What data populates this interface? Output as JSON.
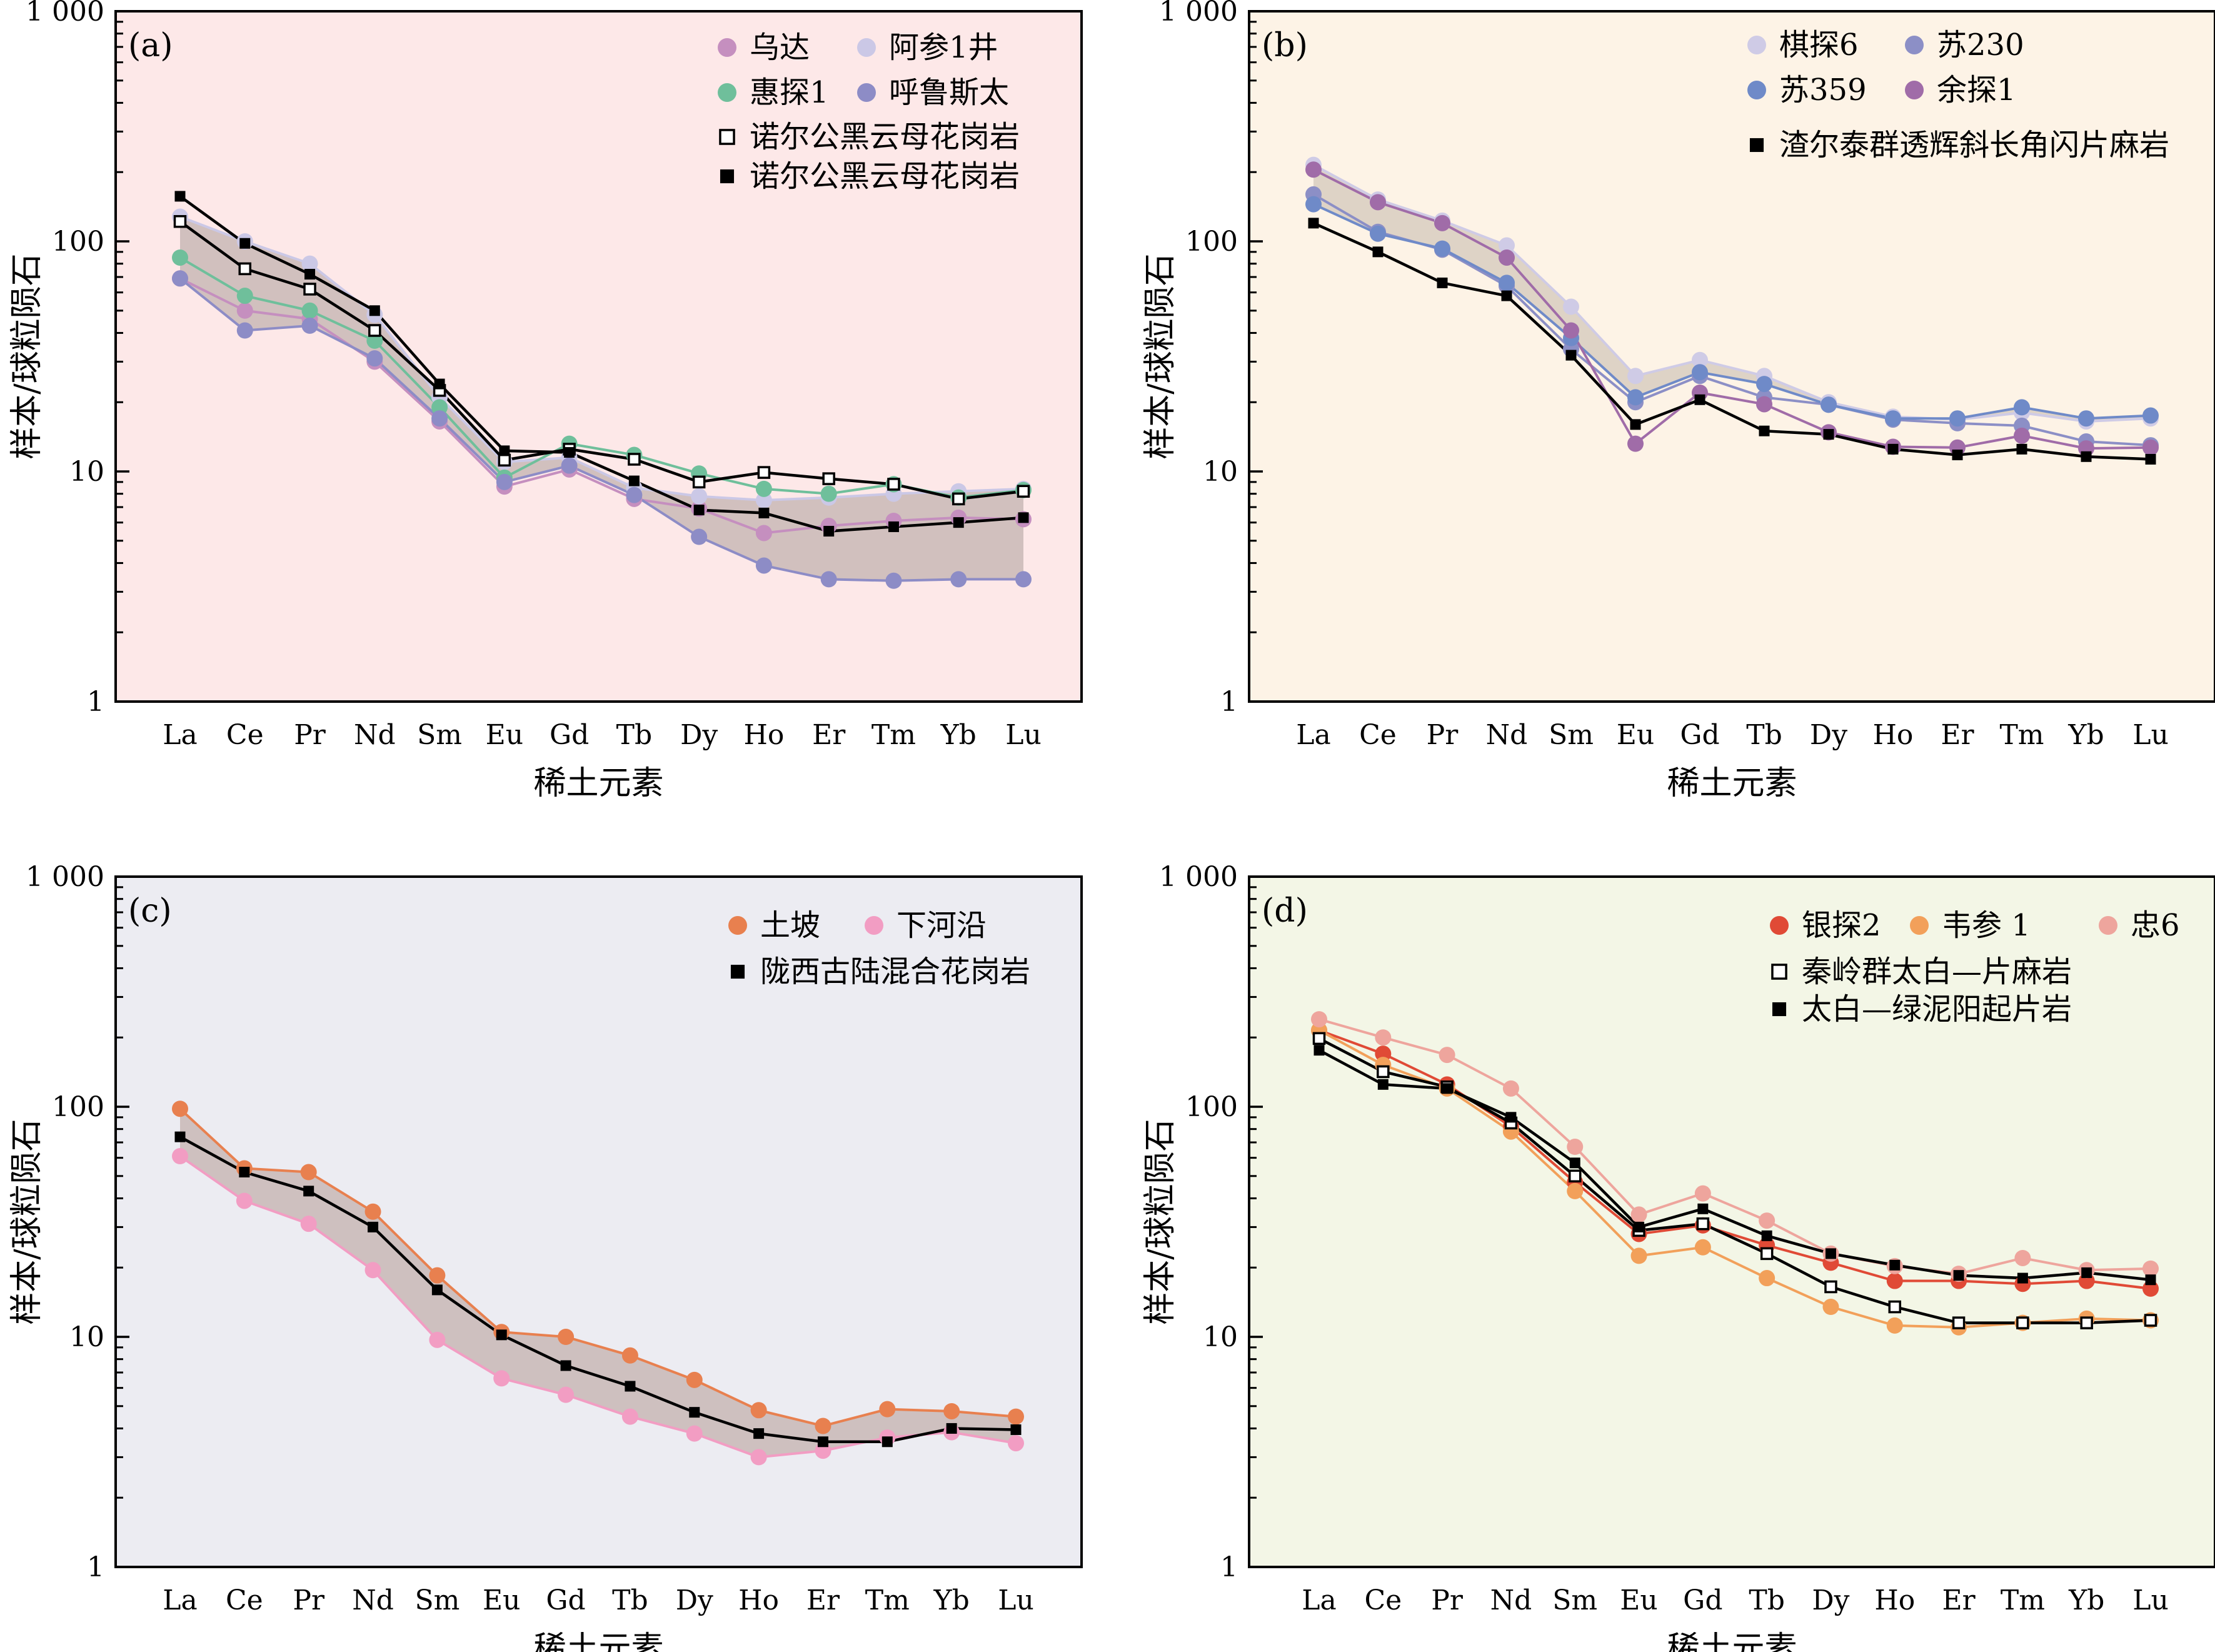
{
  "elements": [
    "La",
    "Ce",
    "Pr",
    "Nd",
    "Sm",
    "Eu",
    "Gd",
    "Tb",
    "Dy",
    "Ho",
    "Er",
    "Tm",
    "Yb",
    "Lu"
  ],
  "y_ticks": [
    {
      "value": 1,
      "label": "1"
    },
    {
      "value": 10,
      "label": "10"
    },
    {
      "value": 100,
      "label": "100"
    },
    {
      "value": 1000,
      "label": "1 000"
    }
  ],
  "chart_data": [
    {
      "type": "line",
      "panel_label": "(a)",
      "xlabel": "稀土元素",
      "ylabel": "样本/球粒陨石",
      "ylim": [
        1,
        1000
      ],
      "yscale": "log",
      "background": "#fde8e8",
      "band": {
        "upper": "阿参1井",
        "lower": "呼鲁斯太",
        "color": "#c9b9b6"
      },
      "series": [
        {
          "name": "乌达",
          "marker": "circle",
          "color": "#c58fbf",
          "values": [
            69,
            50,
            46,
            30,
            16.5,
            8.6,
            10.2,
            7.6,
            6.9,
            5.4,
            5.8,
            6.1,
            6.3,
            6.2
          ]
        },
        {
          "name": "阿参1井",
          "marker": "circle",
          "color": "#cbc8e6",
          "values": [
            128,
            100,
            80,
            48,
            21,
            11,
            11.5,
            8.5,
            7.8,
            7.5,
            7.7,
            8.0,
            8.2,
            8.4
          ]
        },
        {
          "name": "惠探1",
          "marker": "circle",
          "color": "#6fbf9b",
          "values": [
            85,
            58,
            50,
            37,
            19,
            9.4,
            13.2,
            11.8,
            9.8,
            8.4,
            8.0,
            8.8,
            7.7,
            8.3
          ]
        },
        {
          "name": "呼鲁斯太",
          "marker": "circle",
          "color": "#8d8cc6",
          "values": [
            69,
            41,
            43,
            31,
            17,
            9,
            10.6,
            7.9,
            5.2,
            3.9,
            3.4,
            3.35,
            3.4,
            3.4
          ]
        },
        {
          "name": "诺尔公黑云母花岗岩",
          "marker": "open-square",
          "color": "#000000",
          "values": [
            122,
            76,
            62,
            41,
            22.5,
            11.2,
            12.5,
            11.3,
            9.0,
            9.9,
            9.3,
            8.8,
            7.6,
            8.2
          ]
        },
        {
          "name": "诺尔公黑云母花岗岩",
          "marker": "filled-square",
          "color": "#000000",
          "values": [
            157,
            98,
            72,
            50,
            24,
            12.3,
            12.1,
            9.1,
            6.8,
            6.6,
            5.5,
            5.75,
            6.0,
            6.3
          ]
        }
      ]
    },
    {
      "type": "line",
      "panel_label": "(b)",
      "xlabel": "稀土元素",
      "ylabel": "样本/球粒陨石",
      "ylim": [
        1,
        1000
      ],
      "yscale": "log",
      "background": "#fdf3e6",
      "band": {
        "upper": "棋探6",
        "lower": "苏359",
        "color": "#d8ccc0"
      },
      "series": [
        {
          "name": "棋探6",
          "marker": "circle",
          "color": "#cfcbe6",
          "values": [
            215,
            152,
            123,
            96,
            52,
            26,
            30.5,
            26,
            20,
            17.3,
            16.8,
            18.0,
            16.5,
            17.0
          ]
        },
        {
          "name": "苏230",
          "marker": "circle",
          "color": "#8c8fc6",
          "values": [
            160,
            110,
            92,
            64,
            34,
            20,
            26,
            21,
            19.5,
            16.8,
            16.2,
            15.8,
            13.5,
            13.0
          ]
        },
        {
          "name": "苏359",
          "marker": "circle",
          "color": "#6f8ac8",
          "values": [
            145,
            108,
            93,
            66,
            38,
            21,
            27,
            24,
            19.5,
            17,
            17,
            19,
            17,
            17.5
          ]
        },
        {
          "name": "余探1",
          "marker": "circle",
          "color": "#a06ca8",
          "values": [
            205,
            148,
            120,
            85,
            41,
            13.2,
            22,
            19.6,
            14.8,
            12.8,
            12.7,
            14.3,
            12.6,
            12.7
          ]
        },
        {
          "name": "渣尔泰群透辉斜长角闪片麻岩",
          "marker": "filled-square",
          "color": "#000000",
          "values": [
            120,
            90,
            66,
            58,
            32,
            16,
            20.5,
            15,
            14.5,
            12.5,
            11.8,
            12.5,
            11.6,
            11.3
          ]
        }
      ]
    },
    {
      "type": "line",
      "panel_label": "(c)",
      "xlabel": "稀土元素",
      "ylabel": "样本/球粒陨石",
      "ylim": [
        1,
        1000
      ],
      "yscale": "log",
      "background": "#ececf2",
      "band": {
        "upper": "土坡",
        "lower": "下河沿",
        "color": "#c9b9b6"
      },
      "series": [
        {
          "name": "土坡",
          "marker": "circle",
          "color": "#e8804f",
          "values": [
            98,
            54,
            52,
            35,
            18.5,
            10.5,
            10,
            8.3,
            6.5,
            4.8,
            4.1,
            4.85,
            4.75,
            4.5
          ]
        },
        {
          "name": "下河沿",
          "marker": "circle",
          "color": "#f29dc3",
          "values": [
            61,
            39,
            31,
            19.5,
            9.7,
            6.6,
            5.6,
            4.5,
            3.8,
            3.0,
            3.2,
            3.65,
            3.85,
            3.45
          ]
        },
        {
          "name": "陇西古陆混合花岗岩",
          "marker": "filled-square",
          "color": "#000000",
          "values": [
            74,
            52,
            43,
            30,
            16,
            10.2,
            7.5,
            6.1,
            4.7,
            3.8,
            3.5,
            3.5,
            4.0,
            3.95
          ]
        }
      ]
    },
    {
      "type": "line",
      "panel_label": "(d)",
      "xlabel": "稀土元素",
      "ylabel": "样本/球粒陨石",
      "ylim": [
        1,
        1000
      ],
      "yscale": "log",
      "background": "#f3f6e6",
      "band": {
        "upper": "忠6",
        "lower": "韦参1",
        "color": "#cdbfb6"
      },
      "series": [
        {
          "name": "银探2",
          "marker": "circle",
          "color": "#e04a36",
          "values": [
            215,
            170,
            125,
            82,
            47,
            28,
            30.5,
            25,
            21,
            17.5,
            17.5,
            17,
            17.5,
            16.2
          ]
        },
        {
          "name": "韦参 1",
          "marker": "circle",
          "color": "#f2a05a",
          "values": [
            215,
            152,
            120,
            78,
            43,
            22.5,
            24.5,
            18,
            13.5,
            11.2,
            11,
            11.5,
            12,
            11.8
          ]
        },
        {
          "name": "忠6",
          "marker": "circle",
          "color": "#eea59d",
          "values": [
            240,
            200,
            168,
            120,
            67,
            34,
            42,
            32,
            23,
            20.3,
            18.8,
            22,
            19.5,
            19.8
          ]
        },
        {
          "name": "秦岭群太白—片麻岩",
          "marker": "open-square",
          "color": "#000000",
          "values": [
            198,
            142,
            122,
            85,
            50,
            29,
            31,
            23,
            16.5,
            13.5,
            11.5,
            11.5,
            11.5,
            11.8
          ]
        },
        {
          "name": "太白—绿泥阳起片岩",
          "marker": "filled-square",
          "color": "#000000",
          "values": [
            176,
            125,
            120,
            90,
            57,
            30,
            36,
            27.5,
            23,
            20.5,
            18.5,
            18,
            19,
            17.7
          ]
        }
      ]
    }
  ]
}
